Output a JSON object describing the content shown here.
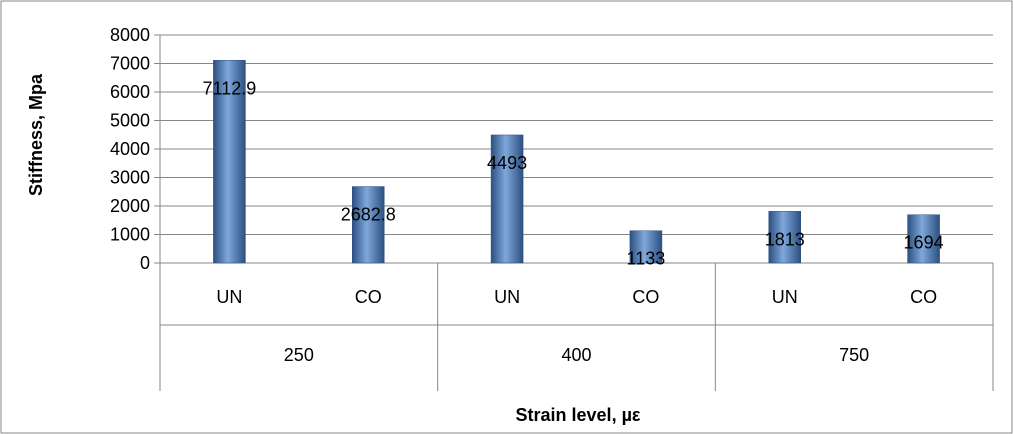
{
  "chart_data": {
    "type": "bar",
    "xlabel": "Strain level, µε",
    "ylabel": "Stiffness, Mpa",
    "ylim": [
      0,
      8000
    ],
    "yticks": [
      0,
      1000,
      2000,
      3000,
      4000,
      5000,
      6000,
      7000,
      8000
    ],
    "grid": true,
    "legend": "none",
    "groups": [
      {
        "label": "250",
        "bars": [
          {
            "category": "UN",
            "value": 7112.9,
            "label": "7112.9"
          },
          {
            "category": "CO",
            "value": 2682.8,
            "label": "2682.8"
          }
        ]
      },
      {
        "label": "400",
        "bars": [
          {
            "category": "UN",
            "value": 4493,
            "label": "4493"
          },
          {
            "category": "CO",
            "value": 1133,
            "label": "1133"
          }
        ]
      },
      {
        "label": "750",
        "bars": [
          {
            "category": "UN",
            "value": 1813,
            "label": "1813"
          },
          {
            "category": "CO",
            "value": 1694,
            "label": "1694"
          }
        ]
      }
    ],
    "colors": {
      "bar": "#4a7ebb",
      "bar_dark": "#2c4f80",
      "bar_light": "#7fa8dc",
      "grid": "#878787",
      "axis": "#878787"
    }
  }
}
